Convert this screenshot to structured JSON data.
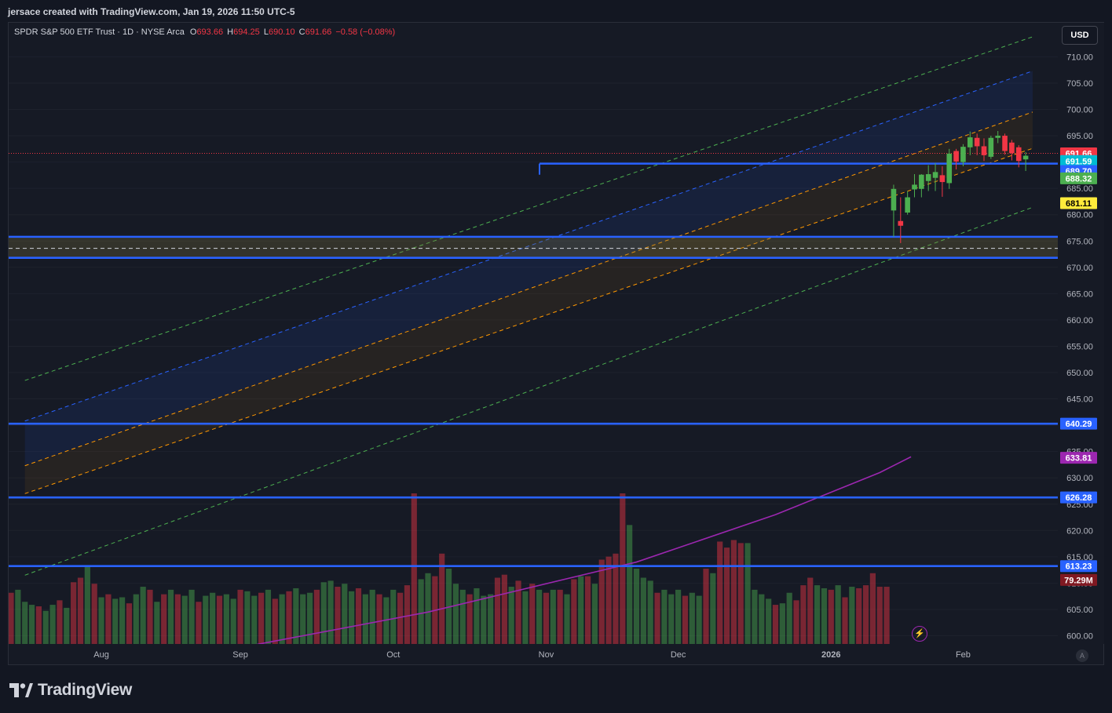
{
  "caption": "jersace created with TradingView.com, Jan 19, 2026 11:50 UTC-5",
  "legend": {
    "symbol": "SPDR S&P 500 ETF Trust · 1D · NYSE Arca",
    "o_label": "O",
    "o": "693.66",
    "h_label": "H",
    "h": "694.25",
    "l_label": "L",
    "l": "690.10",
    "c_label": "C",
    "c": "691.66",
    "change": "−0.58 (−0.08%)"
  },
  "currency": "USD",
  "brand": "TradingView",
  "icons": {
    "logo": "tradingview-logo-icon",
    "bolt": "lightning-icon",
    "auto": "auto-scale-icon"
  },
  "auto_label": "A",
  "bolt_glyph": "⚡",
  "colors": {
    "background": "#161a25",
    "up": "#4caf50",
    "down": "#f23645",
    "hline": "#2962ff",
    "ema_fast": "#00bcd4",
    "ema_mid": "#4caf50",
    "sma_50": "#ffeb3b",
    "sma_200": "#9c27b0",
    "last_price": "#f23645"
  },
  "chart_data": {
    "type": "candlestick",
    "ylim": [
      598,
      714
    ],
    "y_ticks": [
      710,
      705,
      700,
      695,
      690,
      685,
      680,
      675,
      670,
      665,
      660,
      655,
      650,
      645,
      640,
      635,
      630,
      625,
      620,
      615,
      610,
      605,
      600
    ],
    "x_labels": [
      {
        "label": "Aug",
        "bar": 13
      },
      {
        "label": "Sep",
        "bar": 33
      },
      {
        "label": "Oct",
        "bar": 55
      },
      {
        "label": "Nov",
        "bar": 77
      },
      {
        "label": "Dec",
        "bar": 96
      },
      {
        "label": "2026",
        "bar": 118
      },
      {
        "label": "Feb",
        "bar": 137
      }
    ],
    "bars_total": 147,
    "horizontal_levels": [
      689.7,
      675.8,
      671.8,
      640.29,
      626.28,
      613.23
    ],
    "zone": {
      "top": 675.8,
      "bottom": 671.8,
      "mid": 673.6
    },
    "price_labels": [
      {
        "value": "691.66",
        "y": 691.66,
        "bg": "#f23645",
        "fg": "#ffffff"
      },
      {
        "value": "691.59",
        "y": 690.2,
        "bg": "#00bcd4",
        "fg": "#ffffff"
      },
      {
        "value": "689.70",
        "y": 688.3,
        "bg": "#2962ff",
        "fg": "#ffffff"
      },
      {
        "value": "688.32",
        "y": 686.9,
        "bg": "#4caf50",
        "fg": "#ffffff"
      },
      {
        "value": "681.11",
        "y": 682.2,
        "bg": "#ffeb3b",
        "fg": "#000000"
      },
      {
        "value": "640.29",
        "y": 640.29,
        "bg": "#2962ff",
        "fg": "#ffffff"
      },
      {
        "value": "633.81",
        "y": 633.81,
        "bg": "#9c27b0",
        "fg": "#ffffff"
      },
      {
        "value": "626.28",
        "y": 626.28,
        "bg": "#2962ff",
        "fg": "#ffffff"
      },
      {
        "value": "613.23",
        "y": 613.23,
        "bg": "#2962ff",
        "fg": "#ffffff"
      },
      {
        "value": "79.29M",
        "y": 610.6,
        "bg": "#801922",
        "fg": "#ffffff"
      }
    ],
    "channel": {
      "start_bar": 2,
      "end_bar": 147,
      "outer_upper": [
        648.5,
        713.8
      ],
      "upper": [
        640.8,
        707.3
      ],
      "mid_upper": [
        632.3,
        699.5
      ],
      "mid_lower": [
        627.0,
        692.6
      ],
      "lower": [
        619.2,
        688.4
      ],
      "outer_lower": [
        611.5,
        681.4
      ]
    },
    "sma_200": [
      {
        "bar": 34,
        "value": 598.0
      },
      {
        "bar": 60,
        "value": 604.5
      },
      {
        "bar": 90,
        "value": 614.0
      },
      {
        "bar": 110,
        "value": 623.0
      },
      {
        "bar": 125,
        "value": 631.0
      },
      {
        "bar": 129.5,
        "value": 634.0
      }
    ],
    "volume_bars": [
      {
        "bar": 0,
        "up": false,
        "h": 0.34
      },
      {
        "bar": 1,
        "up": true,
        "h": 0.36
      },
      {
        "bar": 2,
        "up": true,
        "h": 0.28
      },
      {
        "bar": 3,
        "up": true,
        "h": 0.26
      },
      {
        "bar": 4,
        "up": false,
        "h": 0.25
      },
      {
        "bar": 5,
        "up": true,
        "h": 0.22
      },
      {
        "bar": 6,
        "up": true,
        "h": 0.26
      },
      {
        "bar": 7,
        "up": false,
        "h": 0.29
      },
      {
        "bar": 8,
        "up": true,
        "h": 0.24
      },
      {
        "bar": 9,
        "up": false,
        "h": 0.41
      },
      {
        "bar": 10,
        "up": false,
        "h": 0.44
      },
      {
        "bar": 11,
        "up": true,
        "h": 0.52
      },
      {
        "bar": 12,
        "up": false,
        "h": 0.4
      },
      {
        "bar": 13,
        "up": true,
        "h": 0.31
      },
      {
        "bar": 14,
        "up": false,
        "h": 0.33
      },
      {
        "bar": 15,
        "up": true,
        "h": 0.3
      },
      {
        "bar": 16,
        "up": true,
        "h": 0.31
      },
      {
        "bar": 17,
        "up": false,
        "h": 0.27
      },
      {
        "bar": 18,
        "up": true,
        "h": 0.33
      },
      {
        "bar": 19,
        "up": true,
        "h": 0.38
      },
      {
        "bar": 20,
        "up": false,
        "h": 0.36
      },
      {
        "bar": 21,
        "up": true,
        "h": 0.28
      },
      {
        "bar": 22,
        "up": false,
        "h": 0.33
      },
      {
        "bar": 23,
        "up": true,
        "h": 0.36
      },
      {
        "bar": 24,
        "up": false,
        "h": 0.33
      },
      {
        "bar": 25,
        "up": true,
        "h": 0.32
      },
      {
        "bar": 26,
        "up": true,
        "h": 0.36
      },
      {
        "bar": 27,
        "up": false,
        "h": 0.28
      },
      {
        "bar": 28,
        "up": true,
        "h": 0.32
      },
      {
        "bar": 29,
        "up": true,
        "h": 0.34
      },
      {
        "bar": 30,
        "up": false,
        "h": 0.32
      },
      {
        "bar": 31,
        "up": true,
        "h": 0.33
      },
      {
        "bar": 32,
        "up": true,
        "h": 0.3
      },
      {
        "bar": 33,
        "up": false,
        "h": 0.36
      },
      {
        "bar": 34,
        "up": true,
        "h": 0.35
      },
      {
        "bar": 35,
        "up": true,
        "h": 0.32
      },
      {
        "bar": 36,
        "up": false,
        "h": 0.34
      },
      {
        "bar": 37,
        "up": true,
        "h": 0.36
      },
      {
        "bar": 38,
        "up": false,
        "h": 0.3
      },
      {
        "bar": 39,
        "up": true,
        "h": 0.33
      },
      {
        "bar": 40,
        "up": false,
        "h": 0.35
      },
      {
        "bar": 41,
        "up": true,
        "h": 0.37
      },
      {
        "bar": 42,
        "up": true,
        "h": 0.33
      },
      {
        "bar": 43,
        "up": true,
        "h": 0.34
      },
      {
        "bar": 44,
        "up": false,
        "h": 0.36
      },
      {
        "bar": 45,
        "up": true,
        "h": 0.41
      },
      {
        "bar": 46,
        "up": true,
        "h": 0.42
      },
      {
        "bar": 47,
        "up": false,
        "h": 0.38
      },
      {
        "bar": 48,
        "up": true,
        "h": 0.4
      },
      {
        "bar": 49,
        "up": true,
        "h": 0.35
      },
      {
        "bar": 50,
        "up": false,
        "h": 0.37
      },
      {
        "bar": 51,
        "up": true,
        "h": 0.33
      },
      {
        "bar": 52,
        "up": true,
        "h": 0.36
      },
      {
        "bar": 53,
        "up": false,
        "h": 0.33
      },
      {
        "bar": 54,
        "up": true,
        "h": 0.31
      },
      {
        "bar": 55,
        "up": true,
        "h": 0.36
      },
      {
        "bar": 56,
        "up": false,
        "h": 0.34
      },
      {
        "bar": 57,
        "up": false,
        "h": 0.39
      },
      {
        "bar": 58,
        "up": false,
        "h": 1.0
      },
      {
        "bar": 59,
        "up": true,
        "h": 0.43
      },
      {
        "bar": 60,
        "up": true,
        "h": 0.47
      },
      {
        "bar": 61,
        "up": false,
        "h": 0.45
      },
      {
        "bar": 62,
        "up": false,
        "h": 0.6
      },
      {
        "bar": 63,
        "up": true,
        "h": 0.5
      },
      {
        "bar": 64,
        "up": true,
        "h": 0.4
      },
      {
        "bar": 65,
        "up": true,
        "h": 0.36
      },
      {
        "bar": 66,
        "up": false,
        "h": 0.33
      },
      {
        "bar": 67,
        "up": true,
        "h": 0.37
      },
      {
        "bar": 68,
        "up": true,
        "h": 0.32
      },
      {
        "bar": 69,
        "up": true,
        "h": 0.33
      },
      {
        "bar": 70,
        "up": false,
        "h": 0.44
      },
      {
        "bar": 71,
        "up": false,
        "h": 0.46
      },
      {
        "bar": 72,
        "up": true,
        "h": 0.38
      },
      {
        "bar": 73,
        "up": false,
        "h": 0.42
      },
      {
        "bar": 74,
        "up": true,
        "h": 0.35
      },
      {
        "bar": 75,
        "up": false,
        "h": 0.4
      },
      {
        "bar": 76,
        "up": true,
        "h": 0.36
      },
      {
        "bar": 77,
        "up": false,
        "h": 0.34
      },
      {
        "bar": 78,
        "up": true,
        "h": 0.36
      },
      {
        "bar": 79,
        "up": false,
        "h": 0.36
      },
      {
        "bar": 80,
        "up": true,
        "h": 0.33
      },
      {
        "bar": 81,
        "up": false,
        "h": 0.43
      },
      {
        "bar": 82,
        "up": true,
        "h": 0.45
      },
      {
        "bar": 83,
        "up": false,
        "h": 0.45
      },
      {
        "bar": 84,
        "up": true,
        "h": 0.4
      },
      {
        "bar": 85,
        "up": false,
        "h": 0.56
      },
      {
        "bar": 86,
        "up": false,
        "h": 0.58
      },
      {
        "bar": 87,
        "up": false,
        "h": 0.6
      },
      {
        "bar": 88,
        "up": false,
        "h": 1.0
      },
      {
        "bar": 89,
        "up": true,
        "h": 0.79
      },
      {
        "bar": 90,
        "up": true,
        "h": 0.5
      },
      {
        "bar": 91,
        "up": true,
        "h": 0.44
      },
      {
        "bar": 92,
        "up": true,
        "h": 0.42
      },
      {
        "bar": 93,
        "up": false,
        "h": 0.34
      },
      {
        "bar": 94,
        "up": true,
        "h": 0.36
      },
      {
        "bar": 95,
        "up": true,
        "h": 0.33
      },
      {
        "bar": 96,
        "up": true,
        "h": 0.36
      },
      {
        "bar": 97,
        "up": false,
        "h": 0.32
      },
      {
        "bar": 98,
        "up": true,
        "h": 0.34
      },
      {
        "bar": 99,
        "up": true,
        "h": 0.32
      },
      {
        "bar": 100,
        "up": false,
        "h": 0.5
      },
      {
        "bar": 101,
        "up": true,
        "h": 0.47
      },
      {
        "bar": 102,
        "up": false,
        "h": 0.68
      },
      {
        "bar": 103,
        "up": false,
        "h": 0.64
      },
      {
        "bar": 104,
        "up": false,
        "h": 0.69
      },
      {
        "bar": 105,
        "up": false,
        "h": 0.67
      },
      {
        "bar": 106,
        "up": true,
        "h": 0.67
      },
      {
        "bar": 107,
        "up": true,
        "h": 0.36
      },
      {
        "bar": 108,
        "up": true,
        "h": 0.33
      },
      {
        "bar": 109,
        "up": true,
        "h": 0.3
      },
      {
        "bar": 110,
        "up": false,
        "h": 0.26
      },
      {
        "bar": 111,
        "up": true,
        "h": 0.27
      },
      {
        "bar": 112,
        "up": true,
        "h": 0.34
      },
      {
        "bar": 113,
        "up": false,
        "h": 0.29
      },
      {
        "bar": 114,
        "up": false,
        "h": 0.39
      },
      {
        "bar": 115,
        "up": false,
        "h": 0.44
      },
      {
        "bar": 116,
        "up": true,
        "h": 0.39
      },
      {
        "bar": 117,
        "up": true,
        "h": 0.37
      },
      {
        "bar": 118,
        "up": false,
        "h": 0.36
      },
      {
        "bar": 119,
        "up": true,
        "h": 0.39
      },
      {
        "bar": 120,
        "up": false,
        "h": 0.31
      },
      {
        "bar": 121,
        "up": true,
        "h": 0.38
      },
      {
        "bar": 122,
        "up": false,
        "h": 0.37
      },
      {
        "bar": 123,
        "up": false,
        "h": 0.39
      },
      {
        "bar": 124,
        "up": false,
        "h": 0.47
      },
      {
        "bar": 125,
        "up": false,
        "h": 0.38
      },
      {
        "bar": 126,
        "up": false,
        "h": 0.38
      }
    ],
    "candles": [
      [
        0,
        680.8,
        684.9,
        675.8,
        685.7
      ],
      [
        1,
        678.8,
        677.9,
        674.6,
        683.3
      ],
      [
        2,
        680.4,
        683.3,
        680.0,
        684.5
      ],
      [
        3,
        684.8,
        685.7,
        683.3,
        687.7
      ],
      [
        4,
        684.9,
        687.6,
        683.3,
        687.7
      ],
      [
        5,
        686.4,
        687.7,
        684.5,
        689.4
      ],
      [
        6,
        687.0,
        688.1,
        684.5,
        689.8
      ],
      [
        7,
        687.5,
        686.2,
        683.4,
        689.2
      ],
      [
        8,
        686.0,
        691.6,
        684.9,
        692.5
      ],
      [
        9,
        692.1,
        690.1,
        688.6,
        692.5
      ],
      [
        10,
        690.0,
        692.9,
        689.2,
        693.4
      ],
      [
        11,
        692.8,
        694.7,
        691.3,
        695.8
      ],
      [
        12,
        694.6,
        693.0,
        691.3,
        695.4
      ],
      [
        13,
        693.0,
        691.3,
        690.2,
        694.5
      ],
      [
        14,
        691.0,
        694.6,
        690.6,
        695.0
      ],
      [
        15,
        694.6,
        695.0,
        693.6,
        695.9
      ],
      [
        16,
        695.0,
        692.1,
        691.4,
        695.4
      ],
      [
        17,
        693.7,
        691.7,
        690.3,
        694.2
      ],
      [
        18,
        692.8,
        690.2,
        689.0,
        693.2
      ],
      [
        19,
        690.5,
        691.2,
        688.3,
        691.9
      ]
    ]
  }
}
